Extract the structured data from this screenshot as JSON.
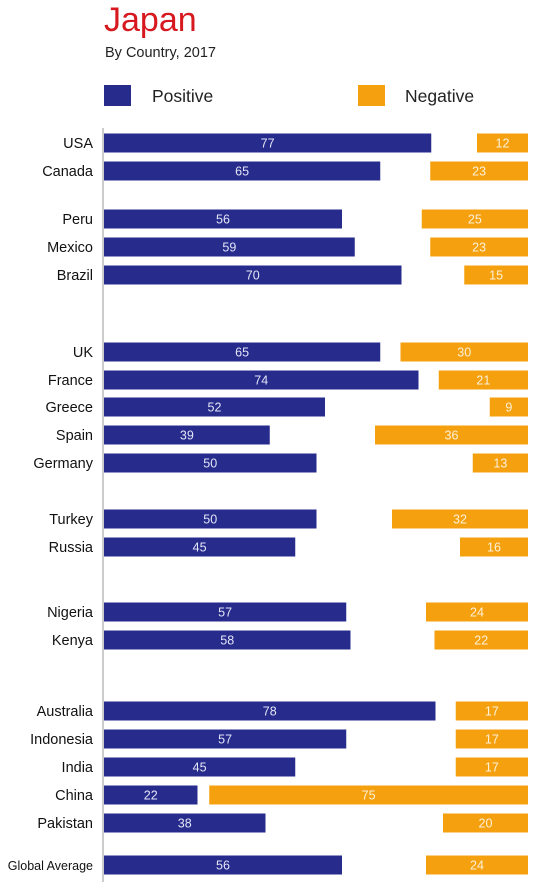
{
  "title": "Japan",
  "subtitle": "By Country, 2017",
  "legend": [
    {
      "label": "Positive",
      "color": "#262b8c"
    },
    {
      "label": "Negative",
      "color": "#f5a00f"
    }
  ],
  "chart_data": {
    "type": "bar",
    "orientation": "horizontal",
    "stacking": "diverging",
    "categories": [
      "USA",
      "Canada",
      "Peru",
      "Mexico",
      "Brazil",
      "UK",
      "France",
      "Greece",
      "Spain",
      "Germany",
      "Turkey",
      "Russia",
      "Nigeria",
      "Kenya",
      "Australia",
      "Indonesia",
      "India",
      "China",
      "Pakistan",
      "Global Average"
    ],
    "groups": [
      [
        "USA",
        "Canada"
      ],
      [
        "Peru",
        "Mexico",
        "Brazil"
      ],
      [
        "UK",
        "France",
        "Greece",
        "Spain",
        "Germany"
      ],
      [
        "Turkey",
        "Russia"
      ],
      [
        "Nigeria",
        "Kenya"
      ],
      [
        "Australia",
        "Indonesia",
        "India",
        "China",
        "Pakistan"
      ],
      [
        "Global Average"
      ]
    ],
    "series": [
      {
        "name": "Positive",
        "color": "#262b8c",
        "values": [
          77,
          65,
          56,
          59,
          70,
          65,
          74,
          52,
          39,
          50,
          50,
          45,
          57,
          58,
          78,
          57,
          45,
          22,
          38,
          56
        ]
      },
      {
        "name": "Negative",
        "color": "#f5a00f",
        "values": [
          12,
          23,
          25,
          23,
          15,
          30,
          21,
          9,
          36,
          13,
          32,
          16,
          24,
          22,
          17,
          17,
          17,
          75,
          20,
          24
        ]
      }
    ],
    "legend_position": "top",
    "grid": false
  }
}
